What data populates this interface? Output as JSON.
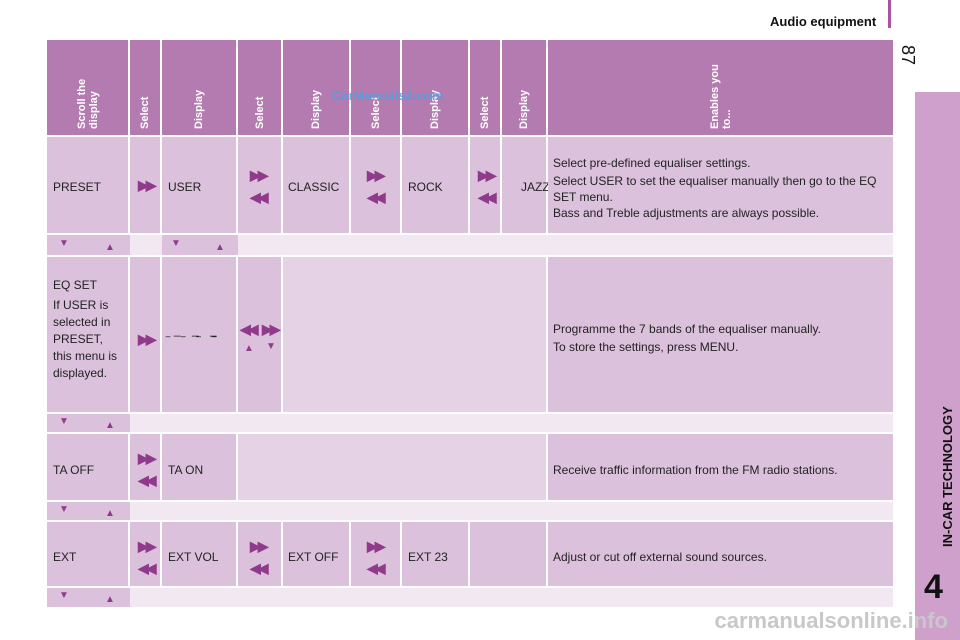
{
  "header": {
    "section": "Audio equipment",
    "page": "87"
  },
  "side": {
    "chapter_label": "IN-CAR TECHNOLOGY",
    "chapter_num": "4"
  },
  "watermark": "CarManuals2.com",
  "footer_watermark": "carmanualsonline.info",
  "columns": [
    "Scroll the display",
    "Select",
    "Display",
    "Select",
    "Display",
    "Select",
    "Display",
    "Select",
    "Display",
    "Enables you to..."
  ],
  "rows": {
    "preset": {
      "c1": "PRESET",
      "c2": "USER",
      "c3": "CLASSIC",
      "c4": "ROCK",
      "c5": "JAZZ",
      "desc1": "Select pre-defined equaliser settings.",
      "desc2": "Select USER to set the equaliser manually then go to the EQ SET menu.",
      "desc3": "Bass and Treble adjustments are always possible."
    },
    "eqset": {
      "c1a": "EQ SET",
      "c1b": "If USER is selected in PRESET, this menu is displayed.",
      "desc1": "Programme the 7 bands of the equaliser manually.",
      "desc2": "To store the settings, press MENU."
    },
    "ta": {
      "c1": "TA OFF",
      "c2": "TA ON",
      "desc": "Receive traffic information from the FM radio stations."
    },
    "ext": {
      "c1": "EXT",
      "c2": "EXT VOL",
      "c3": "EXT OFF",
      "c4": "EXT 23",
      "desc": "Adjust or cut off external sound sources."
    }
  },
  "icons": [
    "fast-forward-icon",
    "rewind-icon",
    "down-arrow-icon",
    "up-arrow-icon"
  ],
  "colors": {
    "header": "#b47bb1",
    "row": "#dcc1dc",
    "spacer": "#f1e8f1",
    "accent": "#a9559d",
    "side_tab": "#cfa0cb"
  }
}
